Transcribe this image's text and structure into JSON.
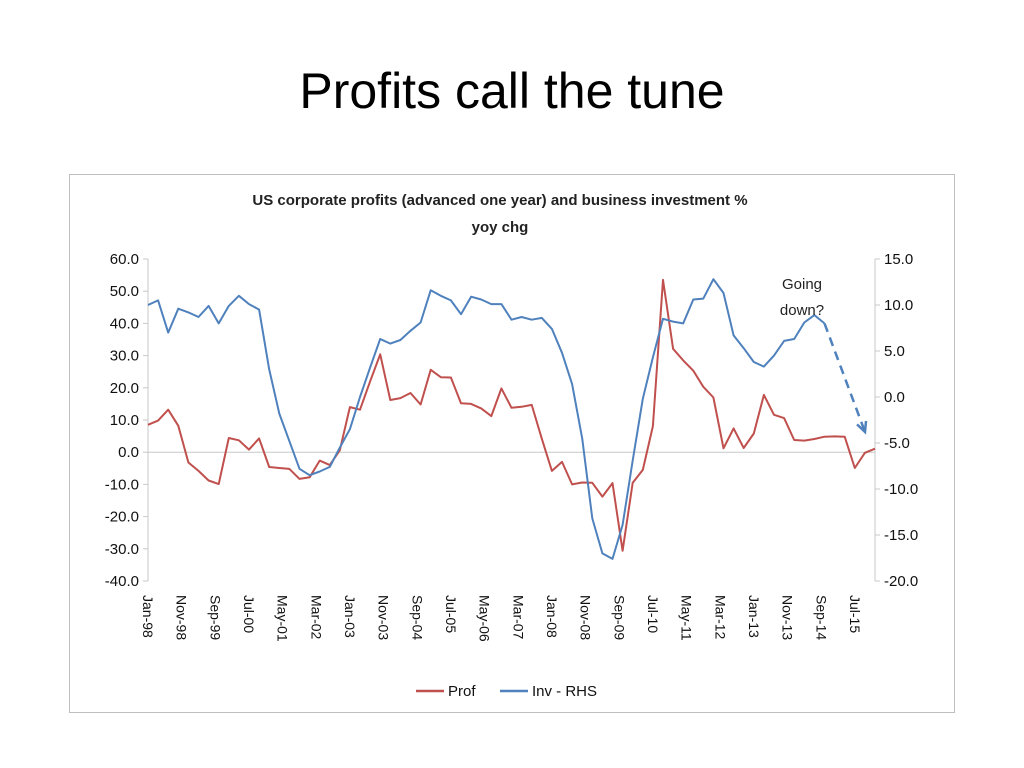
{
  "slide": {
    "title": "Profits call the tune"
  },
  "chart_data": {
    "type": "line",
    "title_lines": [
      "US corporate profits (advanced one year) and business investment %",
      "yoy chg"
    ],
    "left_axis": {
      "ticks": [
        "60.0",
        "50.0",
        "40.0",
        "30.0",
        "20.0",
        "10.0",
        "0.0",
        "-10.0",
        "-20.0",
        "-30.0",
        "-40.0"
      ],
      "ylim": [
        -40,
        60
      ]
    },
    "right_axis": {
      "ticks": [
        "15.0",
        "10.0",
        "5.0",
        "0.0",
        "-5.0",
        "-10.0",
        "-15.0",
        "-20.0"
      ],
      "ylim": [
        -20,
        15
      ]
    },
    "x_tick_labels": [
      "Jan-98",
      "Nov-98",
      "Sep-99",
      "Jul-00",
      "May-01",
      "Mar-02",
      "Jan-03",
      "Nov-03",
      "Sep-04",
      "Jul-05",
      "May-06",
      "Mar-07",
      "Jan-08",
      "Nov-08",
      "Sep-09",
      "Jul-10",
      "May-11",
      "Mar-12",
      "Jan-13",
      "Nov-13",
      "Sep-14",
      "Jul-15"
    ],
    "n_points": 73,
    "series": [
      {
        "name": "Prof",
        "axis": "left",
        "color": "#c0504d",
        "values": [
          8.5,
          9.8,
          13.2,
          8.2,
          -3.2,
          -5.8,
          -8.8,
          -9.9,
          4.4,
          3.7,
          0.8,
          4.3,
          -4.6,
          -4.9,
          -5.2,
          -8.3,
          -7.8,
          -2.6,
          -4.0,
          0.6,
          14.0,
          13.2,
          22.0,
          30.4,
          16.2,
          16.8,
          18.4,
          14.8,
          25.6,
          23.3,
          23.2,
          15.2,
          15.0,
          13.6,
          11.2,
          19.8,
          13.8,
          14.1,
          14.7,
          4.2,
          -5.8,
          -3.0,
          -10.0,
          -9.4,
          -9.5,
          -13.8,
          -9.6,
          -30.6,
          -9.5,
          -5.5,
          8.1,
          53.5,
          32.1,
          28.5,
          25.3,
          20.3,
          17.0,
          1.2,
          7.4,
          1.3,
          5.8,
          17.8,
          11.6,
          10.6,
          3.8,
          3.6,
          4.1,
          4.8,
          4.9,
          4.8,
          -4.9,
          -0.2,
          1.1
        ]
      },
      {
        "name": "Inv - RHS",
        "axis": "right",
        "color": "#4f81bd",
        "values": [
          10.0,
          10.5,
          7.0,
          9.6,
          9.2,
          8.7,
          9.9,
          8.0,
          9.9,
          11.0,
          10.1,
          9.5,
          3.0,
          -1.8,
          -4.8,
          -7.8,
          -8.5,
          -8.1,
          -7.6,
          -5.5,
          -3.5,
          0.0,
          3.2,
          6.3,
          5.8,
          6.2,
          7.2,
          8.1,
          11.6,
          11.0,
          10.5,
          9.0,
          10.9,
          10.6,
          10.1,
          10.1,
          8.4,
          8.7,
          8.4,
          8.6,
          7.4,
          4.8,
          1.4,
          -4.5,
          -13.2,
          -17.0,
          -17.6,
          -13.9,
          -6.9,
          -0.2,
          4.3,
          8.5,
          8.2,
          8.0,
          10.6,
          10.7,
          12.8,
          11.3,
          6.7,
          5.3,
          3.8,
          3.3,
          4.5,
          6.1,
          6.3,
          8.1,
          8.9,
          8.0
        ]
      }
    ],
    "forecast_segment": {
      "series": "Inv - RHS",
      "style": "dashed-arrow",
      "end_value": -3.8
    },
    "annotation": [
      "Going",
      "down?"
    ],
    "legend": {
      "position": "bottom",
      "entries": [
        "Prof",
        "Inv - RHS"
      ]
    },
    "grid": false
  }
}
